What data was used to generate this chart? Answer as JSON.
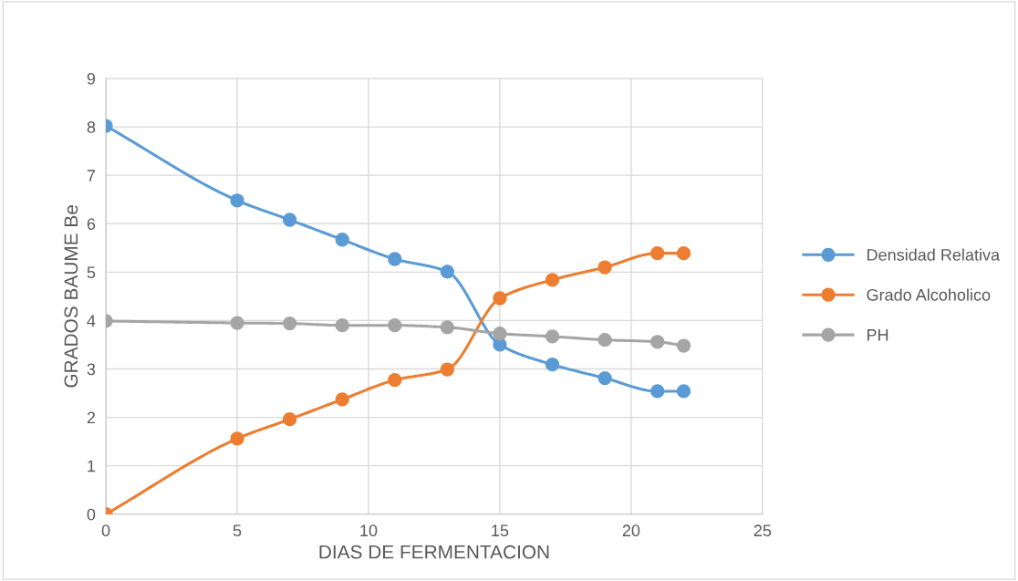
{
  "chart_data": {
    "type": "line",
    "xlabel": "DIAS DE FERMENTACION",
    "ylabel": "GRADOS BAUME Be",
    "x": [
      0,
      5,
      7,
      9,
      11,
      13,
      15,
      17,
      19,
      21,
      22
    ],
    "series": [
      {
        "name": "Densidad Relativa",
        "color": "#5b9bd5",
        "values": [
          8.02,
          6.48,
          6.08,
          5.67,
          5.27,
          5.01,
          3.5,
          3.09,
          2.81,
          2.54,
          2.54
        ]
      },
      {
        "name": "Grado Alcoholico",
        "color": "#ed7d31",
        "values": [
          0,
          1.56,
          1.96,
          2.37,
          2.77,
          2.99,
          4.46,
          4.84,
          5.1,
          5.39,
          5.39
        ]
      },
      {
        "name": "PH",
        "color": "#a5a5a5",
        "values": [
          3.99,
          3.95,
          3.94,
          3.9,
          3.9,
          3.86,
          3.73,
          3.67,
          3.6,
          3.56,
          3.48
        ]
      }
    ],
    "xlim": [
      0,
      25
    ],
    "xticks": [
      0,
      5,
      10,
      15,
      20,
      25
    ],
    "ylim": [
      0,
      9
    ],
    "yticks": [
      0,
      1,
      2,
      3,
      4,
      5,
      6,
      7,
      8,
      9
    ],
    "grid": true,
    "legend": "right",
    "marker": "circle",
    "line_style": "solid"
  }
}
